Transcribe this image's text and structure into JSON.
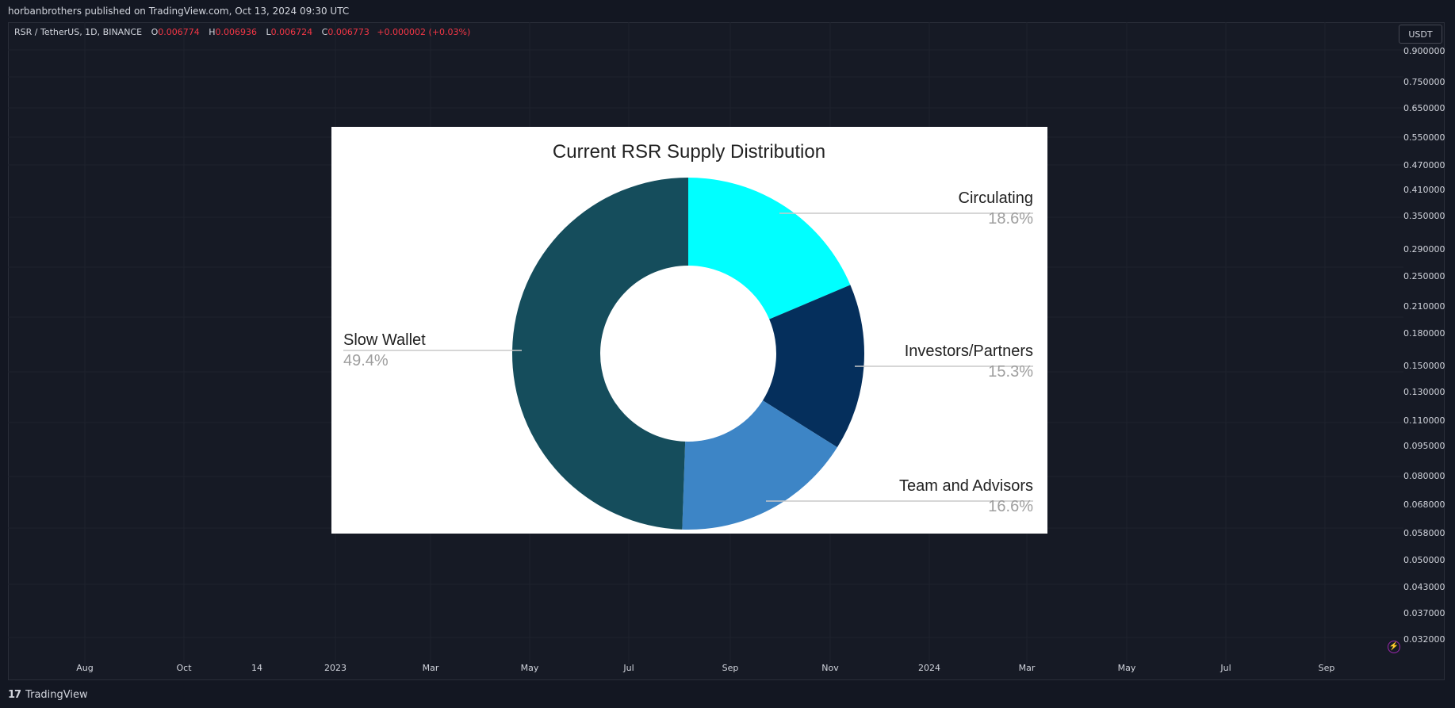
{
  "header": {
    "publisher_line": "horbanbrothers published on TradingView.com, Oct 13, 2024 09:30 UTC"
  },
  "legend": {
    "symbol": "RSR / TetherUS, 1D, BINANCE",
    "open_label": "O",
    "open": "0.006774",
    "high_label": "H",
    "high": "0.006936",
    "low_label": "L",
    "low": "0.006724",
    "close_label": "C",
    "close": "0.006773",
    "change": "+0.000002 (+0.03%)"
  },
  "currency": "USDT",
  "price_axis": [
    "0.900000",
    "0.750000",
    "0.650000",
    "0.550000",
    "0.470000",
    "0.410000",
    "0.350000",
    "0.290000",
    "0.250000",
    "0.210000",
    "0.180000",
    "0.150000",
    "0.130000",
    "0.110000",
    "0.095000",
    "0.080000",
    "0.068000",
    "0.058000",
    "0.050000",
    "0.043000",
    "0.037000",
    "0.032000"
  ],
  "time_axis": [
    "Aug",
    "Oct",
    "14",
    "2023",
    "Mar",
    "May",
    "Jul",
    "Sep",
    "Nov",
    "2024",
    "Mar",
    "May",
    "Jul",
    "Sep"
  ],
  "footer": {
    "logo": "17",
    "brand": "TradingView"
  },
  "colors": {
    "background": "#131722",
    "down": "#f23645",
    "slow_wallet": "#154d5c",
    "circulating": "#00ffff",
    "investors": "#052f5c",
    "team": "#3d85c6"
  },
  "chart_data": {
    "type": "pie",
    "title": "Current RSR Supply Distribution",
    "categories": [
      "Circulating",
      "Investors/Partners",
      "Team and Advisors",
      "Slow Wallet"
    ],
    "values": [
      18.6,
      15.3,
      16.6,
      49.4
    ],
    "value_labels": [
      "18.6%",
      "15.3%",
      "16.6%",
      "49.4%"
    ],
    "donut": true
  }
}
